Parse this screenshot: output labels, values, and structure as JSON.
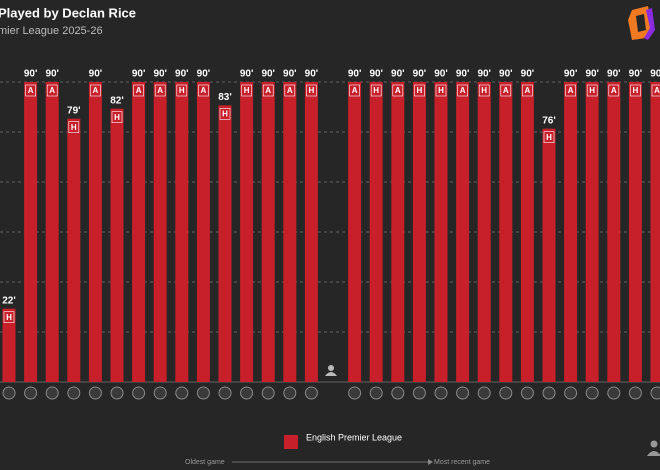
{
  "chart_data": {
    "type": "bar",
    "title": "Played by Declan Rice",
    "subtitle": "mier League 2025-26",
    "values": [
      22,
      90,
      90,
      79,
      90,
      82,
      90,
      90,
      90,
      90,
      83,
      90,
      90,
      90,
      90,
      null,
      90,
      90,
      90,
      90,
      90,
      90,
      90,
      90,
      90,
      76,
      90,
      90,
      90,
      90,
      90
    ],
    "value_labels": [
      "22'",
      "90'",
      "90'",
      "79'",
      "90'",
      "82'",
      "90'",
      "90'",
      "90'",
      "90'",
      "83'",
      "90'",
      "90'",
      "90'",
      "90'",
      null,
      "90'",
      "90'",
      "90'",
      "90'",
      "90'",
      "90'",
      "90'",
      "90'",
      "90'",
      "76'",
      "90'",
      "90'",
      "90'",
      "90'",
      "90'"
    ],
    "venues": [
      "H",
      "A",
      "A",
      "H",
      "A",
      "H",
      "A",
      "A",
      "H",
      "A",
      "H",
      "H",
      "A",
      "A",
      "H",
      null,
      "A",
      "H",
      "A",
      "H",
      "H",
      "A",
      "H",
      "A",
      "A",
      "H",
      "A",
      "H",
      "A",
      "H",
      "A"
    ],
    "color": "#c8202a",
    "ylim": [
      0,
      90
    ],
    "yticks": [
      0,
      15,
      30,
      45,
      60,
      75,
      90
    ],
    "grid": true,
    "legend": {
      "label": "English Premier League"
    },
    "direction": {
      "start": "Oldest game",
      "end": "Most recent game"
    }
  }
}
